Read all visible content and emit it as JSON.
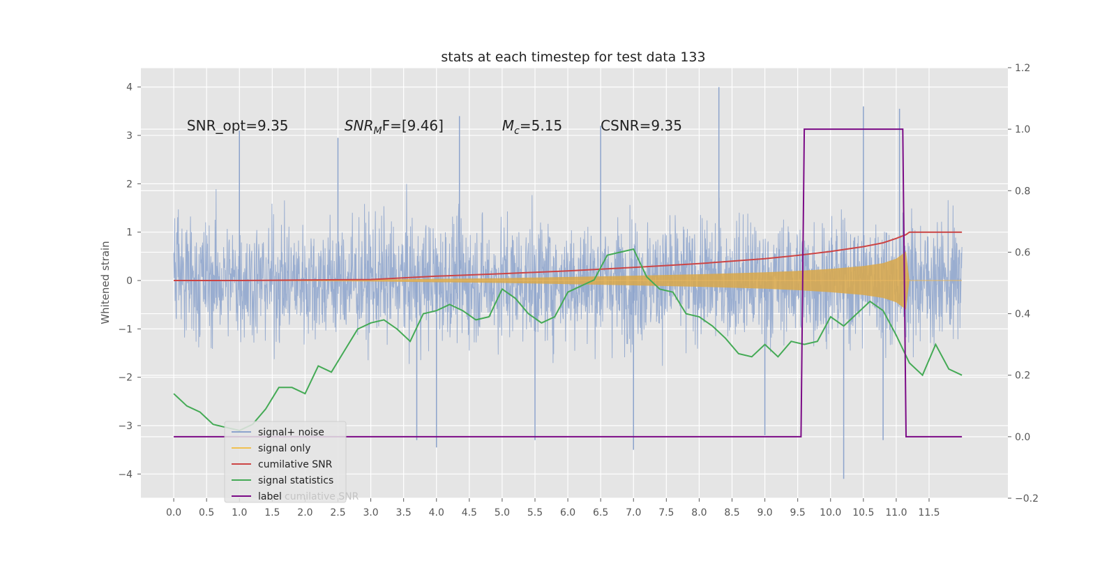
{
  "chart_data": {
    "type": "line",
    "title": "stats at each timestep for test data 133",
    "ylabel": "Whitened strain",
    "y2label": "",
    "xlim": [
      -0.5,
      12.7
    ],
    "ylim": [
      -4.5,
      4.4
    ],
    "y2lim": [
      -0.2,
      1.2
    ],
    "grid": true,
    "background": "#e5e5e5",
    "x_ticks": [
      "0.0",
      "0.5",
      "1.0",
      "1.5",
      "2.0",
      "2.5",
      "3.0",
      "3.5",
      "4.0",
      "4.5",
      "5.0",
      "5.5",
      "6.0",
      "6.5",
      "7.0",
      "7.5",
      "8.0",
      "8.5",
      "9.0",
      "9.5",
      "10.0",
      "10.5",
      "11.0",
      "11.5"
    ],
    "y_ticks": [
      "−4",
      "−3",
      "−2",
      "−1",
      "0",
      "1",
      "2",
      "3",
      "4"
    ],
    "y2_ticks": [
      "−0.2",
      "0.0",
      "0.2",
      "0.4",
      "0.6",
      "0.8",
      "1.0",
      "1.2"
    ],
    "annotations": [
      {
        "text": "SNR_opt=9.35",
        "x": 0.2,
        "y": 3.1
      },
      {
        "text": "SNR",
        "sub": "M",
        "rest": "F=[9.46]",
        "italic": true,
        "x": 2.6,
        "y": 3.1
      },
      {
        "text": "M",
        "sub": "c",
        "rest": "=5.15",
        "italic": true,
        "x": 5.0,
        "y": 3.1
      },
      {
        "text": "CSNR=9.35",
        "x": 6.5,
        "y": 3.1
      }
    ],
    "legend": {
      "placement": "lower-left",
      "entries": [
        {
          "name": "signal+ noise",
          "color": "#8ca3cc"
        },
        {
          "name": "signal only",
          "color": "#f0c050"
        },
        {
          "name": "cumilative SNR",
          "color": "#cc4444"
        },
        {
          "name": "signal statistics",
          "color": "#44aa55"
        },
        {
          "name": "label",
          "color": "#7b0a86"
        }
      ],
      "overlapped_text": "cumilative SNR"
    },
    "series": [
      {
        "name": "signal+ noise",
        "axis": "left",
        "color": "#8ca3cc",
        "kind": "noise_band",
        "x_range": [
          0.0,
          12.0
        ],
        "typical_amplitude": [
          -1.7,
          1.7
        ],
        "peaks": [
          {
            "x": 1.0,
            "y": 3.1
          },
          {
            "x": 2.5,
            "y": 2.95
          },
          {
            "x": 4.35,
            "y": 3.4
          },
          {
            "x": 5.5,
            "y": -3.3
          },
          {
            "x": 6.5,
            "y": 3.2
          },
          {
            "x": 7.0,
            "y": -3.5
          },
          {
            "x": 8.3,
            "y": 4.0
          },
          {
            "x": 10.2,
            "y": -4.1
          },
          {
            "x": 10.5,
            "y": 3.6
          },
          {
            "x": 11.05,
            "y": 3.55
          },
          {
            "x": 4.0,
            "y": -3.45
          },
          {
            "x": 3.7,
            "y": -3.3
          },
          {
            "x": 9.0,
            "y": -3.2
          },
          {
            "x": 10.8,
            "y": -3.3
          }
        ]
      },
      {
        "name": "signal only",
        "axis": "left",
        "color": "#f0c050",
        "kind": "chirp",
        "x": [
          0.0,
          3.0,
          5.0,
          7.0,
          8.0,
          9.0,
          9.5,
          10.0,
          10.5,
          10.8,
          11.0,
          11.1,
          11.15,
          11.2,
          12.0
        ],
        "amplitude": [
          0.0,
          0.02,
          0.05,
          0.1,
          0.13,
          0.17,
          0.2,
          0.24,
          0.3,
          0.36,
          0.45,
          0.55,
          0.6,
          0.0,
          0.0
        ]
      },
      {
        "name": "cumilative SNR",
        "axis": "left",
        "color": "#cc4444",
        "x": [
          0.0,
          1.0,
          2.0,
          3.0,
          4.0,
          5.0,
          6.0,
          7.0,
          8.0,
          9.0,
          9.5,
          10.0,
          10.5,
          10.8,
          11.0,
          11.15,
          11.2,
          12.0
        ],
        "y": [
          0.0,
          0.0,
          0.01,
          0.02,
          0.09,
          0.14,
          0.2,
          0.27,
          0.35,
          0.45,
          0.52,
          0.6,
          0.7,
          0.78,
          0.87,
          0.95,
          1.0,
          1.0
        ]
      },
      {
        "name": "signal statistics",
        "axis": "right",
        "color": "#44aa55",
        "x": [
          0.0,
          0.2,
          0.4,
          0.6,
          0.8,
          1.0,
          1.2,
          1.4,
          1.6,
          1.8,
          2.0,
          2.2,
          2.4,
          2.6,
          2.8,
          3.0,
          3.2,
          3.4,
          3.6,
          3.8,
          4.0,
          4.2,
          4.4,
          4.6,
          4.8,
          5.0,
          5.2,
          5.4,
          5.6,
          5.8,
          6.0,
          6.2,
          6.4,
          6.6,
          6.8,
          7.0,
          7.2,
          7.4,
          7.6,
          7.8,
          8.0,
          8.2,
          8.4,
          8.6,
          8.8,
          9.0,
          9.2,
          9.4,
          9.6,
          9.8,
          10.0,
          10.2,
          10.4,
          10.6,
          10.8,
          11.0,
          11.2,
          11.4,
          11.6,
          11.8,
          12.0
        ],
        "y": [
          0.14,
          0.1,
          0.08,
          0.04,
          0.03,
          0.02,
          0.04,
          0.09,
          0.16,
          0.16,
          0.14,
          0.23,
          0.21,
          0.28,
          0.35,
          0.37,
          0.38,
          0.35,
          0.31,
          0.4,
          0.41,
          0.43,
          0.41,
          0.38,
          0.39,
          0.48,
          0.45,
          0.4,
          0.37,
          0.39,
          0.47,
          0.49,
          0.51,
          0.59,
          0.6,
          0.61,
          0.52,
          0.48,
          0.47,
          0.4,
          0.39,
          0.36,
          0.32,
          0.27,
          0.26,
          0.3,
          0.26,
          0.31,
          0.3,
          0.31,
          0.39,
          0.36,
          0.4,
          0.44,
          0.41,
          0.33,
          0.24,
          0.2,
          0.3,
          0.22,
          0.2
        ]
      },
      {
        "name": "label",
        "axis": "right",
        "color": "#7b0a86",
        "x": [
          0.0,
          9.55,
          9.6,
          11.1,
          11.15,
          12.0
        ],
        "y": [
          0.0,
          0.0,
          1.0,
          1.0,
          0.0,
          0.0
        ]
      }
    ]
  }
}
